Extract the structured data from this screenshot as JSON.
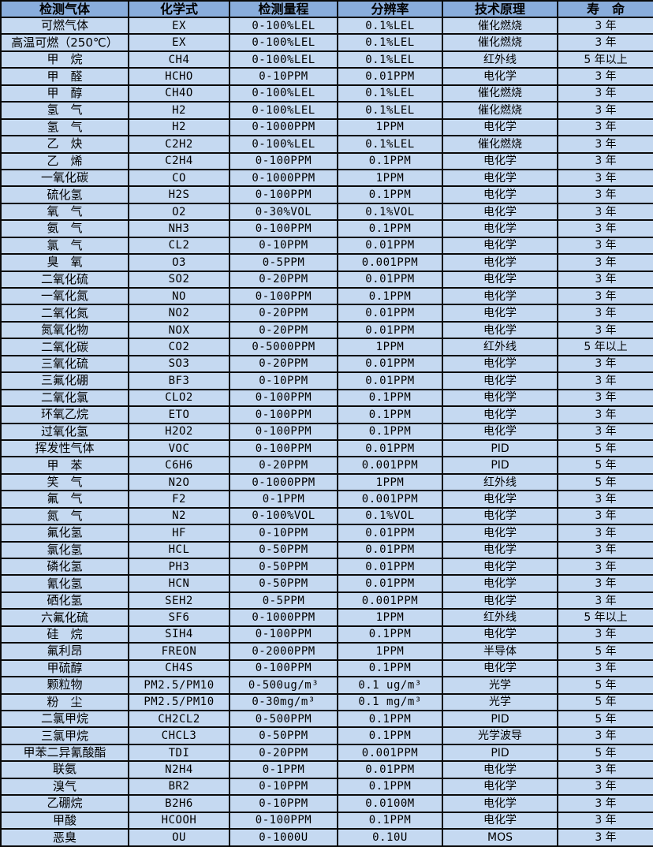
{
  "colors": {
    "header_bg": "#89addc",
    "row_bg": "#c5d9f1",
    "border": "#0a0a0a",
    "text": "#000000"
  },
  "table": {
    "headers": [
      "检测气体",
      "化学式",
      "检测量程",
      "分辨率",
      "技术原理",
      "寿　命"
    ],
    "column_keys": [
      "gas-name",
      "chemical-formula",
      "detection-range",
      "resolution",
      "technology",
      "lifespan"
    ],
    "rows": [
      [
        "可燃气体",
        "EX",
        "0-100%LEL",
        "0.1%LEL",
        "催化燃烧",
        "3 年"
      ],
      [
        "高温可燃（250℃）",
        "EX",
        "0-100%LEL",
        "0.1%LEL",
        "催化燃烧",
        "3 年"
      ],
      [
        "甲　烷",
        "CH4",
        "0-100%LEL",
        "0.1%LEL",
        "红外线",
        "5 年以上"
      ],
      [
        "甲　醛",
        "HCHO",
        "0-10PPM",
        "0.01PPM",
        "电化学",
        "3 年"
      ],
      [
        "甲　醇",
        "CH4O",
        "0-100%LEL",
        "0.1%LEL",
        "催化燃烧",
        "3 年"
      ],
      [
        "氢　气",
        "H2",
        "0-100%LEL",
        "0.1%LEL",
        "催化燃烧",
        "3 年"
      ],
      [
        "氢　气",
        "H2",
        "0-1000PPM",
        "1PPM",
        "电化学",
        "3 年"
      ],
      [
        "乙　炔",
        "C2H2",
        "0-100%LEL",
        "0.1%LEL",
        "催化燃烧",
        "3 年"
      ],
      [
        "乙　烯",
        "C2H4",
        "0-100PPM",
        "0.1PPM",
        "电化学",
        "3 年"
      ],
      [
        "一氧化碳",
        "CO",
        "0-1000PPM",
        "1PPM",
        "电化学",
        "3 年"
      ],
      [
        "硫化氢",
        "H2S",
        "0-100PPM",
        "0.1PPM",
        "电化学",
        "3 年"
      ],
      [
        "氧　气",
        "O2",
        "0-30%VOL",
        "0.1%VOL",
        "电化学",
        "3 年"
      ],
      [
        "氨　气",
        "NH3",
        "0-100PPM",
        "0.1PPM",
        "电化学",
        "3 年"
      ],
      [
        "氯　气",
        "CL2",
        "0-10PPM",
        "0.01PPM",
        "电化学",
        "3 年"
      ],
      [
        "臭　氧",
        "O3",
        "0-5PPM",
        "0.001PPM",
        "电化学",
        "3 年"
      ],
      [
        "二氧化硫",
        "SO2",
        "0-20PPM",
        "0.01PPM",
        "电化学",
        "3 年"
      ],
      [
        "一氧化氮",
        "NO",
        "0-100PPM",
        "0.1PPM",
        "电化学",
        "3 年"
      ],
      [
        "二氧化氮",
        "NO2",
        "0-20PPM",
        "0.01PPM",
        "电化学",
        "3 年"
      ],
      [
        "氮氧化物",
        "NOX",
        "0-20PPM",
        "0.01PPM",
        "电化学",
        "3 年"
      ],
      [
        "二氧化碳",
        "CO2",
        "0-5000PPM",
        "1PPM",
        "红外线",
        "5 年以上"
      ],
      [
        "三氧化硫",
        "SO3",
        "0-20PPM",
        "0.01PPM",
        "电化学",
        "3 年"
      ],
      [
        "三氟化硼",
        "BF3",
        "0-10PPM",
        "0.01PPM",
        "电化学",
        "3 年"
      ],
      [
        "二氧化氯",
        "CLO2",
        "0-100PPM",
        "0.1PPM",
        "电化学",
        "3 年"
      ],
      [
        "环氧乙烷",
        "ETO",
        "0-100PPM",
        "0.1PPM",
        "电化学",
        "3 年"
      ],
      [
        "过氧化氢",
        "H2O2",
        "0-100PPM",
        "0.1PPM",
        "电化学",
        "3 年"
      ],
      [
        "挥发性气体",
        "VOC",
        "0-100PPM",
        "0.01PPM",
        "PID",
        "5 年"
      ],
      [
        "甲　苯",
        "C6H6",
        "0-20PPM",
        "0.001PPM",
        "PID",
        "5 年"
      ],
      [
        "笑　气",
        "N2O",
        "0-1000PPM",
        "1PPM",
        "红外线",
        "5 年"
      ],
      [
        "氟　气",
        "F2",
        "0-1PPM",
        "0.001PPM",
        "电化学",
        "3 年"
      ],
      [
        "氮　气",
        "N2",
        "0-100%VOL",
        "0.1%VOL",
        "电化学",
        "3 年"
      ],
      [
        "氟化氢",
        "HF",
        "0-10PPM",
        "0.01PPM",
        "电化学",
        "3 年"
      ],
      [
        "氯化氢",
        "HCL",
        "0-50PPM",
        "0.01PPM",
        "电化学",
        "3 年"
      ],
      [
        "磷化氢",
        "PH3",
        "0-50PPM",
        "0.01PPM",
        "电化学",
        "3 年"
      ],
      [
        "氰化氢",
        "HCN",
        "0-50PPM",
        "0.01PPM",
        "电化学",
        "3 年"
      ],
      [
        "硒化氢",
        "SEH2",
        "0-5PPM",
        "0.001PPM",
        "电化学",
        "3 年"
      ],
      [
        "六氟化硫",
        "SF6",
        "0-1000PPM",
        "1PPM",
        "红外线",
        "5 年以上"
      ],
      [
        "硅　烷",
        "SIH4",
        "0-100PPM",
        "0.1PPM",
        "电化学",
        "3 年"
      ],
      [
        "氟利昂",
        "FREON",
        "0-2000PPM",
        "1PPM",
        "半导体",
        "5 年"
      ],
      [
        "甲硫醇",
        "CH4S",
        "0-100PPM",
        "0.1PPM",
        "电化学",
        "3 年"
      ],
      [
        "颗粒物",
        "PM2.5/PM10",
        "0-500ug/m³",
        "0.1 ug/m³",
        "光学",
        "5 年"
      ],
      [
        "粉　尘",
        "PM2.5/PM10",
        "0-30mg/m³",
        "0.1 mg/m³",
        "光学",
        "5 年"
      ],
      [
        "二氯甲烷",
        "CH2CL2",
        "0-500PPM",
        "0.1PPM",
        "PID",
        "5 年"
      ],
      [
        "三氯甲烷",
        "CHCL3",
        "0-50PPM",
        "0.1PPM",
        "光学波导",
        "3 年"
      ],
      [
        "甲苯二异氰酸酯",
        "TDI",
        "0-20PPM",
        "0.001PPM",
        "PID",
        "5 年"
      ],
      [
        "联氨",
        "N2H4",
        "0-1PPM",
        "0.01PPM",
        "电化学",
        "3 年"
      ],
      [
        "溴气",
        "BR2",
        "0-10PPM",
        "0.1PPM",
        "电化学",
        "3 年"
      ],
      [
        "乙硼烷",
        "B2H6",
        "0-10PPM",
        "0.0100M",
        "电化学",
        "3 年"
      ],
      [
        "甲酸",
        "HCOOH",
        "0-100PPM",
        "0.1PPM",
        "电化学",
        "3 年"
      ],
      [
        "恶臭",
        "OU",
        "0-1000U",
        "0.10U",
        "MOS",
        "3 年"
      ]
    ]
  }
}
